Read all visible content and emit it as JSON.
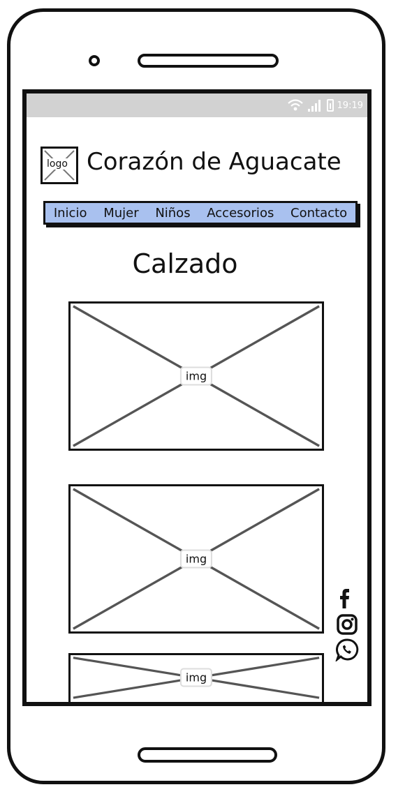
{
  "status_bar": {
    "time": "19:19"
  },
  "logo": {
    "label": "logo"
  },
  "site": {
    "title": "Corazón de Aguacate"
  },
  "nav": {
    "background": "#a9c1ef",
    "items": [
      {
        "label": "Inicio"
      },
      {
        "label": "Mujer"
      },
      {
        "label": "Niños"
      },
      {
        "label": "Accesorios"
      },
      {
        "label": "Contacto"
      }
    ]
  },
  "main": {
    "section_title": "Calzado",
    "images": [
      {
        "label": "img"
      },
      {
        "label": "img"
      },
      {
        "label": "img"
      }
    ]
  },
  "social": {
    "icons": [
      "facebook-icon",
      "instagram-icon",
      "whatsapp-icon"
    ]
  }
}
